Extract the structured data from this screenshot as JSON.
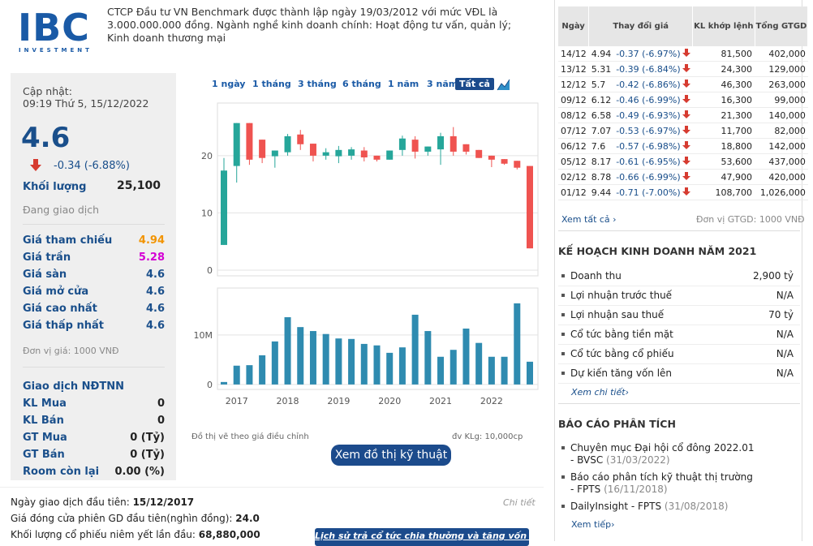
{
  "header": {
    "logo_text": "IBC",
    "logo_subtext": "INVESTMENT",
    "description": "CTCP Đầu tư VN Benchmark được thành lập ngày 19/03/2012 với mức VĐL là 3.000.000.000 đồng. Ngành nghề kinh doanh chính: Hoạt động tư vấn, quản lý; Kinh doanh thương mại"
  },
  "quote": {
    "update_label": "Cập nhật:",
    "update_time": "09:19 Thứ 5, 15/12/2022",
    "price": "4.6",
    "change": "-0.34 (-6.88%)",
    "volume_label": "Khối lượng",
    "volume": "25,100",
    "status": "Đang giao dịch",
    "prices": [
      {
        "label": "Giá tham chiếu",
        "value": "4.94",
        "color": "#f29400"
      },
      {
        "label": "Giá trần",
        "value": "5.28",
        "color": "#d400d4"
      },
      {
        "label": "Giá sàn",
        "value": "4.6",
        "color": "#1a4f8b"
      },
      {
        "label": "Giá mở cửa",
        "value": "4.6",
        "color": "#1a4f8b"
      },
      {
        "label": "Giá cao nhất",
        "value": "4.6",
        "color": "#1a4f8b"
      },
      {
        "label": "Giá thấp nhất",
        "value": "4.6",
        "color": "#1a4f8b"
      }
    ],
    "unit": "Đơn vị giá: 1000 VNĐ",
    "foreign_title": "Giao dịch NĐTNN",
    "foreign": [
      {
        "label": "KL Mua",
        "value": "0"
      },
      {
        "label": "KL Bán",
        "value": "0"
      },
      {
        "label": "GT Mua",
        "value": "0 (Tỷ)"
      },
      {
        "label": "GT Bán",
        "value": "0 (Tỷ)"
      },
      {
        "label": "Room còn lại",
        "value": "0.00 (%)"
      }
    ]
  },
  "ranges": [
    "1 ngày",
    "1 tháng",
    "3 tháng",
    "6 tháng",
    "1 năm",
    "3 năm",
    "Tất cả"
  ],
  "chart_data": {
    "type": "candlestick",
    "categories": [
      null,
      "2017",
      null,
      null,
      null,
      "2018",
      null,
      null,
      null,
      "2019",
      null,
      null,
      null,
      "2020",
      null,
      null,
      null,
      "2021",
      null,
      null,
      null,
      "2022",
      null,
      null,
      null
    ],
    "open": [
      4.4,
      18.2,
      25.7,
      22.8,
      19.9,
      20.6,
      23.7,
      22.1,
      20.0,
      19.9,
      20.0,
      20.9,
      20.0,
      19.3,
      21.0,
      22.8,
      20.7,
      21.1,
      23.4,
      22.0,
      21.0,
      20.0,
      19.4,
      19.1,
      18.2
    ],
    "high": [
      19.6,
      25.7,
      25.7,
      22.8,
      20.9,
      23.8,
      24.5,
      22.1,
      21.3,
      21.7,
      21.5,
      21.5,
      20.0,
      20.9,
      23.5,
      23.4,
      21.6,
      24.0,
      25.0,
      22.0,
      21.0,
      20.0,
      19.4,
      19.1,
      18.2
    ],
    "low": [
      4.4,
      15.3,
      18.4,
      18.7,
      17.9,
      20.0,
      21.0,
      19.0,
      19.3,
      18.7,
      19.3,
      19.0,
      19.0,
      19.3,
      20.0,
      19.5,
      20.0,
      18.4,
      20.0,
      20.2,
      19.6,
      18.0,
      18.4,
      17.6,
      3.8
    ],
    "close": [
      17.4,
      25.7,
      19.3,
      19.6,
      20.9,
      23.4,
      22.0,
      20.0,
      20.6,
      21.0,
      21.1,
      19.7,
      19.3,
      20.9,
      23.0,
      20.7,
      21.6,
      23.4,
      20.7,
      20.7,
      19.6,
      19.3,
      18.6,
      17.9,
      3.8
    ],
    "volume": [
      0.5,
      3.8,
      3.9,
      5.9,
      8.7,
      13.6,
      11.6,
      10.8,
      10.2,
      9.3,
      9.2,
      8.2,
      7.9,
      6.4,
      7.5,
      14.1,
      10.8,
      5.6,
      7.0,
      11.3,
      8.4,
      5.6,
      5.6,
      16.4,
      4.6
    ],
    "ylim": [
      -1,
      29.2
    ],
    "yticks": [
      0,
      10,
      20
    ],
    "volume_ylim": [
      -1,
      19.5
    ],
    "volume_yticks": [
      0,
      {
        "value": 10,
        "label": "10M"
      }
    ],
    "up_color": "#26a69a",
    "down_color": "#ef5350",
    "volume_color": "#2f8bb0",
    "grid": true,
    "note_left": "Đồ thị vẽ theo giá điều chỉnh",
    "note_right": "đv KLg: 10,000cp"
  },
  "tech_button": "Xem đồ thị kỹ thuật",
  "first_trade": {
    "lines": [
      {
        "label": "Ngày giao dịch đầu tiên: ",
        "value": "15/12/2017"
      },
      {
        "label": "Giá đóng cửa phiên GD đầu tiên(nghìn đồng): ",
        "value": "24.0"
      },
      {
        "label": "Khối lượng cổ phiếu niêm yết lần đầu: ",
        "value": "68,880,000"
      }
    ],
    "detail": "Chi tiết",
    "history_button": "Lịch sử trả cổ tức chia thưởng và tăng vốn »"
  },
  "trades": {
    "headers": [
      "Ngày",
      "Thay đổi giá",
      "KL khớp lệnh",
      "Tổng GTGD"
    ],
    "rows": [
      [
        "14/12",
        "4.94",
        "-0.37 (-6.97%)",
        "81,500",
        "402,000"
      ],
      [
        "13/12",
        "5.31",
        "-0.39 (-6.84%)",
        "24,300",
        "129,000"
      ],
      [
        "12/12",
        "5.7",
        "-0.42 (-6.86%)",
        "46,300",
        "263,000"
      ],
      [
        "09/12",
        "6.12",
        "-0.46 (-6.99%)",
        "16,300",
        "99,000"
      ],
      [
        "08/12",
        "6.58",
        "-0.49 (-6.93%)",
        "21,300",
        "140,000"
      ],
      [
        "07/12",
        "7.07",
        "-0.53 (-6.97%)",
        "11,700",
        "82,000"
      ],
      [
        "06/12",
        "7.6",
        "-0.57 (-6.98%)",
        "18,800",
        "142,000"
      ],
      [
        "05/12",
        "8.17",
        "-0.61 (-6.95%)",
        "53,600",
        "437,000"
      ],
      [
        "02/12",
        "8.78",
        "-0.66 (-6.99%)",
        "47,900",
        "420,000"
      ],
      [
        "01/12",
        "9.44",
        "-0.71 (-7.00%)",
        "108,700",
        "1,026,000"
      ]
    ],
    "see_all": "Xem tất cả ›",
    "unit": "Đơn vị GTGD: 1000 VNĐ"
  },
  "plan": {
    "title": "KẾ HOẠCH KINH DOANH NĂM 2021",
    "items": [
      {
        "label": "Doanh thu",
        "value": "2,900 tỷ"
      },
      {
        "label": "Lợi nhuận trước thuế",
        "value": "N/A"
      },
      {
        "label": "Lợi nhuận sau thuế",
        "value": "70 tỷ"
      },
      {
        "label": "Cổ tức bằng tiền mặt",
        "value": "N/A"
      },
      {
        "label": "Cổ tức bằng cổ phiếu",
        "value": "N/A"
      },
      {
        "label": "Dự kiến tăng vốn lên",
        "value": "N/A"
      }
    ],
    "more": "Xem chi tiết›"
  },
  "reports": {
    "title": "BÁO CÁO PHÂN TÍCH",
    "items": [
      {
        "title": "Chuyên mục Đại hội cổ đông 2022.01 - BVSC",
        "date": "(31/03/2022)"
      },
      {
        "title": "Báo cáo phân tích kỹ thuật thị trường - FPTS",
        "date": "(16/11/2018)"
      },
      {
        "title": "DailyInsight - FPTS",
        "date": "(31/08/2018)"
      }
    ],
    "more": "Xem tiếp›"
  }
}
